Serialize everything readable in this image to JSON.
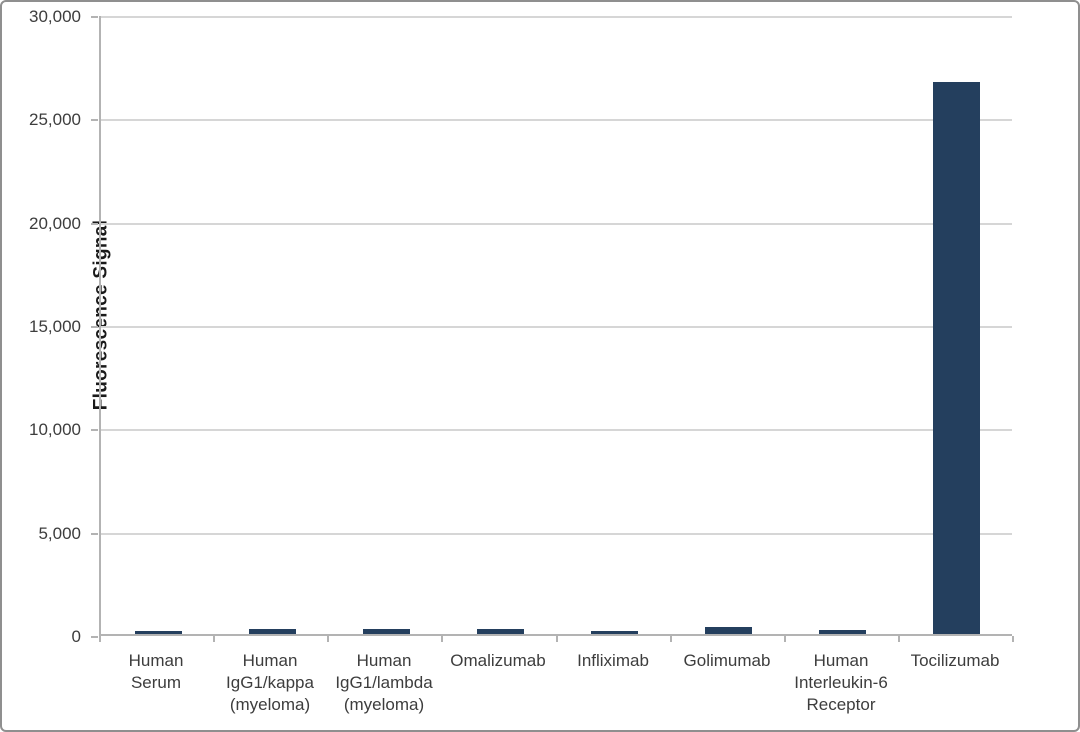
{
  "chart_data": {
    "type": "bar",
    "title": "",
    "xlabel": "",
    "ylabel": "Fluorescence Signal",
    "categories": [
      "Human\nSerum",
      "Human\nIgG1/kappa\n(myeloma)",
      "Human\nIgG1/lambda\n(myeloma)",
      "Omalizumab",
      "Infliximab",
      "Golimumab",
      "Human\nInterleukin-6\nReceptor",
      "Tocilizumab"
    ],
    "values": [
      150,
      250,
      250,
      230,
      160,
      320,
      190,
      26700
    ],
    "ylim": [
      0,
      30000
    ],
    "ytick_interval": 5000,
    "ytick_labels": [
      "0",
      "5,000",
      "10,000",
      "15,000",
      "20,000",
      "25,000",
      "30,000"
    ],
    "grid": true,
    "legend_position": "none"
  },
  "colors": {
    "bar": "#243F5E",
    "gridline": "#d6d6d6",
    "axis": "#b3b3b3",
    "tick_text": "#3d3d3d",
    "axis_title_text": "#1a1a1a",
    "frame_border": "#8f8f8f",
    "background": "#ffffff"
  }
}
